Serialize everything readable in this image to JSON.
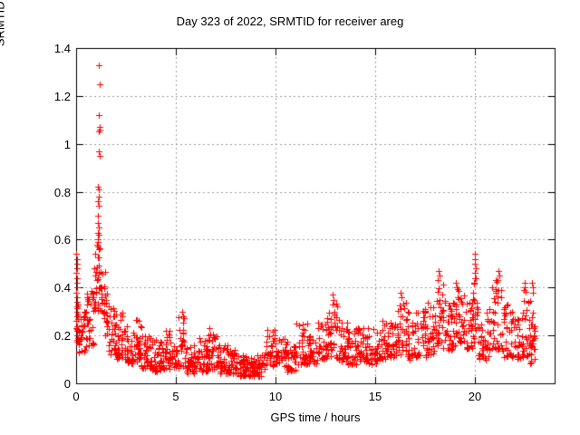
{
  "chart_data": {
    "type": "scatter",
    "title": "Day 323 of 2022, SRMTID for receiver areg",
    "xlabel": "GPS time / hours",
    "ylabel": "SRMTID / TECUs",
    "xlim": [
      0,
      24
    ],
    "ylim": [
      0,
      1.4
    ],
    "xticks": [
      0,
      5,
      10,
      15,
      20
    ],
    "xtick_labels": [
      "0",
      "5",
      "10",
      "15",
      "20"
    ],
    "yticks": [
      0,
      0.2,
      0.4,
      0.6,
      0.8,
      1.0,
      1.2,
      1.4
    ],
    "ytick_labels": [
      "0",
      "0.2",
      "0.4",
      "0.6",
      "0.8",
      "1",
      "1.2",
      "1.4"
    ],
    "grid": true,
    "legend": "none",
    "background_color": "#ffffff",
    "grid_color": "#9e9e9e",
    "border_color": "#000000",
    "marker": {
      "shape": "plus",
      "color": "#ff0000",
      "size": 7
    },
    "series_name": "SRMTID",
    "note": "Dense ~1600-point scatter; exact samples approximated. spike_points are individually visible extreme samples [hour, TECU]; cloud_bands describe the dense cloud envelope as [x_start, x_end, y_low, y_high, n_points].",
    "spike_points": [
      [
        1.13,
        1.33
      ],
      [
        1.17,
        1.25
      ],
      [
        1.15,
        1.12
      ],
      [
        1.18,
        1.07
      ],
      [
        1.16,
        1.06
      ],
      [
        1.14,
        1.05
      ],
      [
        1.13,
        0.97
      ],
      [
        1.16,
        0.95
      ],
      [
        1.1,
        0.82
      ],
      [
        1.14,
        0.81
      ],
      [
        1.12,
        0.78
      ],
      [
        1.1,
        0.76
      ],
      [
        1.13,
        0.74
      ],
      [
        1.11,
        0.7
      ],
      [
        1.09,
        0.67
      ],
      [
        1.12,
        0.65
      ],
      [
        1.1,
        0.63
      ],
      [
        1.13,
        0.62
      ],
      [
        1.08,
        0.6
      ],
      [
        1.11,
        0.59
      ],
      [
        1.06,
        0.58
      ],
      [
        1.1,
        0.57
      ],
      [
        1.14,
        0.56
      ],
      [
        0.02,
        0.54
      ],
      [
        0.04,
        0.52
      ],
      [
        0.03,
        0.5
      ],
      [
        0.05,
        0.48
      ],
      [
        0.02,
        0.46
      ],
      [
        0.04,
        0.44
      ],
      [
        0.03,
        0.42
      ],
      [
        0.05,
        0.4
      ],
      [
        0.02,
        0.38
      ],
      [
        0.04,
        0.36
      ],
      [
        0.03,
        0.34
      ],
      [
        0.05,
        0.32
      ],
      [
        0.03,
        0.3
      ],
      [
        0.04,
        0.28
      ],
      [
        0.02,
        0.26
      ],
      [
        0.05,
        0.24
      ],
      [
        0.03,
        0.22
      ],
      [
        0.04,
        0.2
      ],
      [
        0.03,
        0.18
      ],
      [
        19.98,
        0.54
      ],
      [
        20.02,
        0.52
      ],
      [
        19.99,
        0.5
      ],
      [
        20.04,
        0.48
      ],
      [
        20.0,
        0.46
      ],
      [
        20.03,
        0.44
      ],
      [
        19.97,
        0.42
      ],
      [
        21.18,
        0.47
      ],
      [
        21.22,
        0.45
      ],
      [
        21.15,
        0.43
      ],
      [
        18.18,
        0.47
      ],
      [
        18.22,
        0.45
      ],
      [
        18.15,
        0.43
      ],
      [
        19.05,
        0.42
      ],
      [
        19.1,
        0.4
      ],
      [
        22.48,
        0.42
      ],
      [
        22.52,
        0.4
      ],
      [
        22.88,
        0.42
      ],
      [
        22.92,
        0.4
      ],
      [
        22.9,
        0.38
      ],
      [
        16.28,
        0.38
      ],
      [
        16.32,
        0.36
      ],
      [
        12.88,
        0.37
      ],
      [
        12.92,
        0.35
      ],
      [
        5.32,
        0.3
      ],
      [
        5.35,
        0.28
      ]
    ],
    "cloud_bands": [
      [
        0.0,
        0.15,
        0.16,
        0.34,
        14
      ],
      [
        0.1,
        0.5,
        0.13,
        0.3,
        30
      ],
      [
        0.5,
        0.9,
        0.16,
        0.4,
        30
      ],
      [
        0.9,
        1.25,
        0.3,
        0.58,
        34
      ],
      [
        1.25,
        1.6,
        0.2,
        0.48,
        26
      ],
      [
        1.6,
        2.0,
        0.12,
        0.34,
        30
      ],
      [
        2.0,
        2.45,
        0.1,
        0.3,
        32
      ],
      [
        2.45,
        2.9,
        0.08,
        0.24,
        32
      ],
      [
        2.9,
        3.3,
        0.07,
        0.27,
        32
      ],
      [
        3.3,
        3.8,
        0.06,
        0.2,
        34
      ],
      [
        3.8,
        4.3,
        0.05,
        0.19,
        34
      ],
      [
        4.3,
        4.7,
        0.06,
        0.23,
        30
      ],
      [
        4.7,
        5.15,
        0.05,
        0.18,
        32
      ],
      [
        5.15,
        5.45,
        0.07,
        0.3,
        22
      ],
      [
        5.45,
        6.1,
        0.04,
        0.16,
        40
      ],
      [
        6.1,
        6.6,
        0.05,
        0.2,
        34
      ],
      [
        6.6,
        7.05,
        0.06,
        0.24,
        32
      ],
      [
        7.05,
        7.6,
        0.04,
        0.16,
        36
      ],
      [
        7.6,
        8.1,
        0.04,
        0.14,
        36
      ],
      [
        8.1,
        8.6,
        0.03,
        0.12,
        36
      ],
      [
        8.6,
        9.1,
        0.03,
        0.11,
        36
      ],
      [
        9.1,
        9.5,
        0.03,
        0.12,
        26
      ],
      [
        9.5,
        10.05,
        0.07,
        0.23,
        34
      ],
      [
        10.05,
        10.6,
        0.07,
        0.19,
        32
      ],
      [
        10.6,
        11.0,
        0.05,
        0.16,
        28
      ],
      [
        11.0,
        11.6,
        0.08,
        0.25,
        34
      ],
      [
        11.6,
        12.1,
        0.08,
        0.2,
        32
      ],
      [
        12.1,
        12.6,
        0.1,
        0.26,
        32
      ],
      [
        12.6,
        13.1,
        0.11,
        0.34,
        34
      ],
      [
        13.1,
        13.6,
        0.09,
        0.27,
        32
      ],
      [
        13.6,
        14.1,
        0.08,
        0.23,
        32
      ],
      [
        14.1,
        14.6,
        0.09,
        0.24,
        32
      ],
      [
        14.6,
        15.1,
        0.08,
        0.23,
        32
      ],
      [
        15.1,
        15.6,
        0.1,
        0.27,
        32
      ],
      [
        15.6,
        16.1,
        0.11,
        0.26,
        32
      ],
      [
        16.1,
        16.6,
        0.11,
        0.34,
        32
      ],
      [
        16.6,
        17.1,
        0.1,
        0.3,
        32
      ],
      [
        17.1,
        17.6,
        0.11,
        0.31,
        32
      ],
      [
        17.6,
        18.1,
        0.12,
        0.36,
        32
      ],
      [
        18.1,
        18.5,
        0.14,
        0.42,
        30
      ],
      [
        18.5,
        19.0,
        0.14,
        0.34,
        32
      ],
      [
        19.0,
        19.55,
        0.16,
        0.4,
        34
      ],
      [
        19.55,
        20.0,
        0.14,
        0.36,
        30
      ],
      [
        19.9,
        20.15,
        0.22,
        0.5,
        16
      ],
      [
        20.15,
        20.7,
        0.1,
        0.32,
        32
      ],
      [
        20.7,
        21.35,
        0.14,
        0.44,
        40
      ],
      [
        21.35,
        21.85,
        0.11,
        0.34,
        30
      ],
      [
        21.85,
        22.35,
        0.1,
        0.3,
        30
      ],
      [
        22.35,
        22.75,
        0.11,
        0.4,
        28
      ],
      [
        22.75,
        23.05,
        0.08,
        0.4,
        30
      ]
    ]
  }
}
